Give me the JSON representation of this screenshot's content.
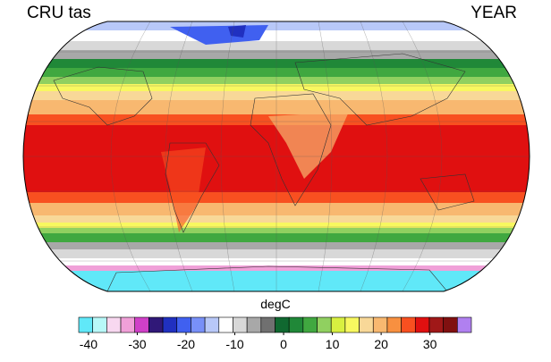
{
  "chart_data": {
    "type": "colorbar",
    "title_left": "CRU tas",
    "title_right": "YEAR",
    "colorbar_label": "degC",
    "colors": [
      "#60e8f8",
      "#b8f8f8",
      "#f8d8f0",
      "#f0a0d8",
      "#d040c8",
      "#301878",
      "#2030c0",
      "#4060f0",
      "#7890f8",
      "#b8c8f8",
      "#ffffff",
      "#d8d8d8",
      "#a8a8a8",
      "#707070",
      "#106830",
      "#208838",
      "#40a840",
      "#90d060",
      "#d8f040",
      "#f8f860",
      "#f8d898",
      "#f8b870",
      "#f89040",
      "#f85020",
      "#e01010",
      "#a01818",
      "#801010",
      "#b080f0"
    ],
    "xlim": [
      -42,
      38.5
    ],
    "xticks": [
      -40,
      -30,
      -20,
      -10,
      0,
      10,
      20,
      30
    ]
  }
}
